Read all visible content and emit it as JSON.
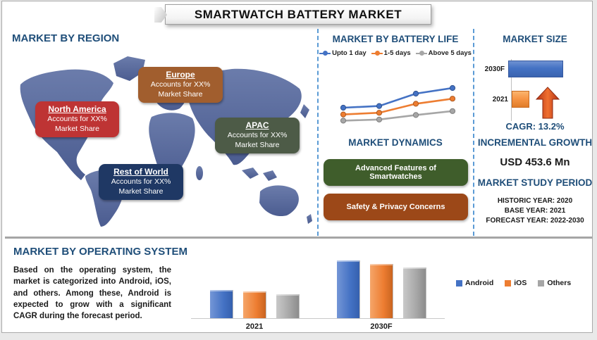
{
  "title": "SMARTWATCH BATTERY MARKET",
  "region_section": {
    "heading": "MARKET BY REGION",
    "regions": [
      {
        "name": "North America",
        "line1": "Accounts for XX%",
        "line2": "Market Share",
        "color": "#be3434"
      },
      {
        "name": "Europe",
        "line1": "Accounts for XX%",
        "line2": "Market Share",
        "color": "#a15e2e"
      },
      {
        "name": "APAC",
        "line1": "Accounts for XX%",
        "line2": "Market Share",
        "color": "#4d5b47"
      },
      {
        "name": "Rest of World",
        "line1": "Accounts for XX%",
        "line2": "Market Share",
        "color": "#1f3864"
      }
    ],
    "map_color": "#5b6fa0"
  },
  "battery_section": {
    "heading": "MARKET BY BATTERY LIFE"
  },
  "dynamics_section": {
    "heading": "MARKET DYNAMICS",
    "drivers": [
      {
        "label": "Advanced Features of Smartwatches",
        "color": "#3f5d2b"
      },
      {
        "label": "Safety & Privacy Concerns",
        "color": "#9c4818"
      }
    ]
  },
  "market_size_section": {
    "heading": "MARKET SIZE",
    "cagr_label": "CAGR: 13.2%",
    "arrow_color": "#d8491c"
  },
  "incremental_growth": {
    "heading": "INCREMENTAL GROWTH",
    "value": "USD 453.6 Mn"
  },
  "study_period": {
    "heading": "MARKET STUDY PERIOD",
    "rows": [
      "HISTORIC YEAR: 2020",
      "BASE YEAR: 2021",
      "FORECAST YEAR: 2022-2030"
    ]
  },
  "os_section": {
    "heading": "MARKET BY OPERATING SYSTEM",
    "paragraph": "Based on the operating system, the market is categorized into Android, iOS, and others. Among these, Android is expected to grow with a significant CAGR during the forecast period."
  },
  "chart_data": [
    {
      "id": "battery_life_trend",
      "type": "line",
      "title": "MARKET BY BATTERY LIFE",
      "x": [
        1,
        2,
        3,
        4
      ],
      "x_axis_labels_visible": false,
      "ylim": [
        0,
        100
      ],
      "legend_position": "top",
      "note": "axes unlabeled; values estimated from point positions (relative scale)",
      "series": [
        {
          "name": "Upto 1 day",
          "values": [
            45,
            48,
            70,
            80
          ],
          "color": "#4472c4",
          "edge": "#2f528f"
        },
        {
          "name": "1-5 days",
          "values": [
            33,
            36,
            52,
            61
          ],
          "color": "#ed7d31",
          "edge": "#ae5a21"
        },
        {
          "name": "Above 5 days",
          "values": [
            22,
            24,
            32,
            39
          ],
          "color": "#a6a6a6",
          "edge": "#7f7f7f"
        }
      ]
    },
    {
      "id": "market_size",
      "type": "bar",
      "orientation": "horizontal",
      "title": "MARKET SIZE",
      "categories": [
        "2030F",
        "2021"
      ],
      "values": [
        100,
        32
      ],
      "colors": [
        "#4472c4",
        "#f79646"
      ],
      "note": "relative bar lengths; numeric values not labeled in figure"
    },
    {
      "id": "os_market",
      "type": "bar",
      "title": "MARKET BY OPERATING SYSTEM",
      "categories": [
        "2021",
        "2030F"
      ],
      "ylim": [
        0,
        100
      ],
      "legend_position": "right",
      "note": "relative bar heights; y-axis unlabeled",
      "series": [
        {
          "name": "Android",
          "values": [
            40,
            82
          ],
          "color": "#4472c4",
          "light": "#7496d6",
          "dark": "#3560ae"
        },
        {
          "name": "iOS",
          "values": [
            38,
            77
          ],
          "color": "#ed7d31",
          "light": "#f5a569",
          "dark": "#c96420"
        },
        {
          "name": "Others",
          "values": [
            34,
            72
          ],
          "color": "#a6a6a6",
          "light": "#c9c9c9",
          "dark": "#8c8c8c"
        }
      ]
    }
  ]
}
